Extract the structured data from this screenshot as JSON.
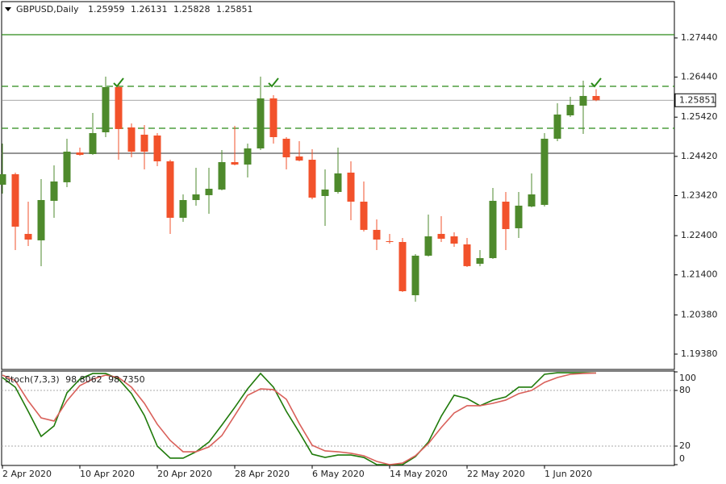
{
  "chart_data": [
    {
      "type": "candlestick",
      "symbol": "GBPUSD,Daily",
      "categories": [
        "2 Apr 2020",
        null,
        null,
        null,
        null,
        null,
        "10 Apr 2020",
        null,
        null,
        null,
        null,
        null,
        "20 Apr 2020",
        null,
        null,
        null,
        null,
        null,
        "28 Apr 2020",
        null,
        null,
        null,
        null,
        null,
        "6 May 2020",
        null,
        null,
        null,
        null,
        null,
        "14 May 2020",
        null,
        null,
        null,
        null,
        null,
        "22 May 2020",
        null,
        null,
        null,
        null,
        null,
        "1 Jun 2020",
        null,
        null,
        null,
        null
      ],
      "open": [
        1.23698,
        1.23965,
        1.22444,
        1.2228,
        1.23287,
        1.2376,
        1.2452,
        1.24479,
        1.25034,
        1.26186,
        1.25158,
        1.24973,
        1.24952,
        1.24294,
        1.22855,
        1.23307,
        1.23431,
        1.23575,
        1.24274,
        1.24212,
        1.24623,
        1.25898,
        1.2487,
        1.24418,
        1.24335,
        1.2341,
        1.23513,
        1.24006,
        1.23266,
        1.22547,
        1.22259,
        1.22238,
        1.20881,
        1.21889,
        1.22444,
        1.22382,
        1.22177,
        1.21683,
        1.21827,
        1.23266,
        1.22588,
        1.23143,
        1.23184,
        1.2487,
        1.25466,
        1.25713,
        1.25959
      ],
      "high": [
        1.24747,
        1.24006,
        1.23266,
        1.23842,
        1.24192,
        1.2487,
        1.24644,
        1.25528,
        1.26453,
        1.26289,
        1.25261,
        1.2522,
        1.25014,
        1.24335,
        1.23451,
        1.2413,
        1.2413,
        1.24582,
        1.25199,
        1.24747,
        1.26453,
        1.2598,
        1.24911,
        1.24808,
        1.24603,
        1.24089,
        1.24644,
        1.24294,
        1.2378,
        1.22814,
        1.22444,
        1.22341,
        1.2193,
        1.22937,
        1.22896,
        1.22485,
        1.22341,
        1.22033,
        1.23616,
        1.23513,
        1.23513,
        1.23986,
        1.25014,
        1.25775,
        1.25939,
        1.2635,
        1.26131
      ],
      "low": [
        1.23472,
        1.22033,
        1.22136,
        1.21622,
        1.22855,
        1.23636,
        1.24438,
        1.24459,
        1.24911,
        1.24335,
        1.24397,
        1.24089,
        1.24171,
        1.22444,
        1.22752,
        1.23164,
        1.22958,
        1.23554,
        1.24192,
        1.23883,
        1.24582,
        1.24747,
        1.24089,
        1.24294,
        1.23328,
        1.2265,
        1.23472,
        1.22793,
        1.22506,
        1.22033,
        1.22197,
        1.20964,
        1.20717,
        1.21868,
        1.22238,
        1.22115,
        1.21601,
        1.21622,
        1.21807,
        1.22033,
        1.22341,
        1.23122,
        1.23143,
        1.24808,
        1.25425,
        1.24993,
        1.25828
      ],
      "close": [
        1.23965,
        1.22629,
        1.223,
        1.23307,
        1.2378,
        1.24541,
        1.24459,
        1.25014,
        1.26186,
        1.25117,
        1.24541,
        1.24541,
        1.24294,
        1.22855,
        1.23307,
        1.23451,
        1.23595,
        1.24274,
        1.24212,
        1.24623,
        1.25898,
        1.24911,
        1.24397,
        1.24315,
        1.23369,
        1.23575,
        1.23986,
        1.23266,
        1.22547,
        1.223,
        1.22238,
        1.20984,
        1.21889,
        1.22382,
        1.22321,
        1.22197,
        1.21622,
        1.21827,
        1.23287,
        1.22567,
        1.23164,
        1.23451,
        1.2487,
        1.25487,
        1.25734,
        1.2596,
        1.25851
      ],
      "up_color": "#4e8a2c",
      "down_color": "#f2522b",
      "ylim": [
        1.18989,
        1.28365
      ],
      "yticks": [
        {
          "value": 1.2744,
          "label": "1.27440"
        },
        {
          "value": 1.2644,
          "label": "1.26440"
        },
        {
          "value": 1.2542,
          "label": "1.25420"
        },
        {
          "value": 1.2442,
          "label": "1.24420"
        },
        {
          "value": 1.2342,
          "label": "1.23420"
        },
        {
          "value": 1.224,
          "label": "1.22400"
        },
        {
          "value": 1.214,
          "label": "1.21400"
        },
        {
          "value": 1.2038,
          "label": "1.20380"
        },
        {
          "value": 1.1938,
          "label": "1.19380"
        }
      ],
      "levels": [
        {
          "value": 1.27522,
          "color": "#2a8a18",
          "style": "solid"
        },
        {
          "value": 1.26206,
          "color": "#2a8a18",
          "style": "dashed"
        },
        {
          "value": 1.25137,
          "color": "#2a8a18",
          "style": "dashed"
        },
        {
          "value": 1.245,
          "color": "#555555",
          "style": "solid"
        }
      ]
    },
    {
      "type": "line",
      "title": "Stoch(7,3,3)",
      "readout": [
        {
          "value": 98.8062,
          "label": "98.8062"
        },
        {
          "value": 98.735,
          "label": "98.7350"
        }
      ],
      "series": [
        {
          "color": "#1f7a0a",
          "values": [
            93.9,
            83.5,
            57.4,
            30.4,
            41.7,
            77.4,
            92.2,
            98.3,
            98.3,
            92.2,
            76.5,
            53,
            20,
            7,
            7,
            13.9,
            24.3,
            42.6,
            61.7,
            81.7,
            98.3,
            83.5,
            57.4,
            34.8,
            11.3,
            7.8,
            10.4,
            10.4,
            7.8,
            0,
            0,
            0,
            8.7,
            24.3,
            52.2,
            74.8,
            71.3,
            63.5,
            69.6,
            73,
            83.5,
            83.5,
            97.4,
            99.1,
            99.1,
            99.1,
            98.8062
          ]
        },
        {
          "color": "#d9605a",
          "values": [
            96.5,
            90.4,
            68.7,
            50.4,
            47,
            68.7,
            85.2,
            92.2,
            96.5,
            93.9,
            83.5,
            66.1,
            43.5,
            26.1,
            13.9,
            13.9,
            19.1,
            31.3,
            53,
            74.8,
            81.7,
            80.9,
            70.4,
            44.3,
            20.9,
            14.8,
            13.9,
            12.2,
            9.6,
            3.5,
            0,
            1.7,
            9.6,
            22.6,
            40,
            55.7,
            63.5,
            63.5,
            66.1,
            69.6,
            76.5,
            80,
            88.7,
            93.9,
            97.4,
            98.3,
            98.735
          ]
        }
      ],
      "ylim": [
        0,
        100
      ],
      "yticks": [
        100,
        80,
        20,
        0
      ]
    }
  ]
}
